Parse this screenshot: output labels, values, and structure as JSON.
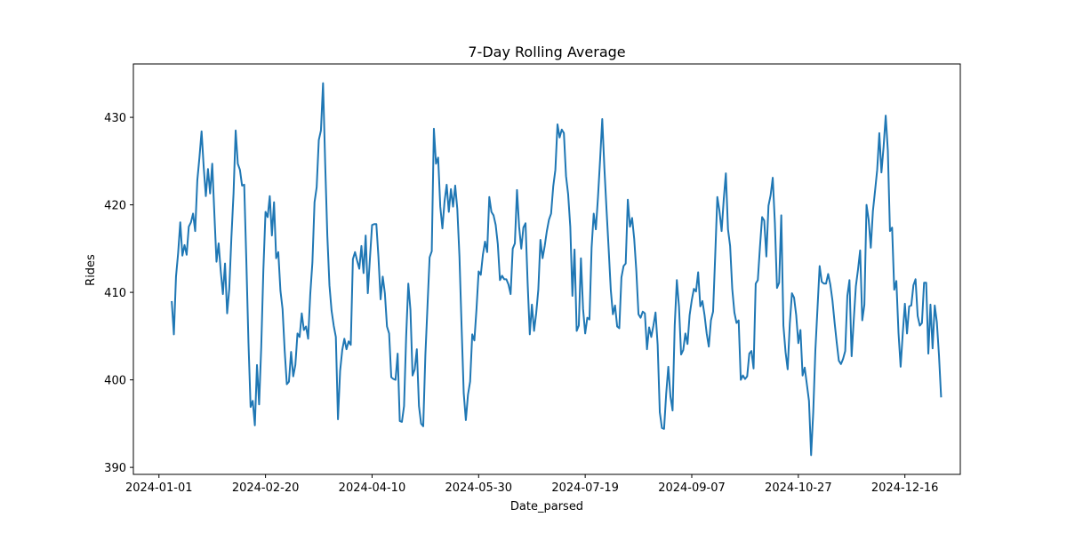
{
  "chart_data": {
    "type": "line",
    "title": "7-Day Rolling Average",
    "xlabel": "Date_parsed",
    "ylabel": "Rides",
    "x_tick_labels": [
      "2024-01-01",
      "2024-02-20",
      "2024-04-10",
      "2024-05-30",
      "2024-07-19",
      "2024-09-07",
      "2024-10-27",
      "2024-12-16"
    ],
    "y_ticks": [
      390,
      400,
      410,
      420,
      430
    ],
    "xlim": [
      "2023-12-20",
      "2025-01-11"
    ],
    "ylim": [
      389.2,
      436.1
    ],
    "grid": false,
    "color": "#1f77b4",
    "series": [
      {
        "x_start": "2024-01-07",
        "x_step_days": 1,
        "values": [
          409,
          405.2,
          411.8,
          414.5,
          418,
          414.2,
          415.4,
          414.3,
          417.5,
          418,
          419,
          417,
          422.8,
          425.4,
          428.4,
          424.3,
          421,
          424.1,
          421.3,
          424.7,
          419,
          413.5,
          415.6,
          412.4,
          409.8,
          413.3,
          407.6,
          410.4,
          416.3,
          421.3,
          428.5,
          424.7,
          424,
          422.2,
          422.3,
          413.6,
          404.3,
          396.9,
          397.6,
          394.8,
          401.7,
          397.2,
          403.8,
          412.6,
          419.2,
          418.6,
          421,
          416.5,
          420.3,
          413.9,
          414.6,
          410.2,
          408.1,
          403.3,
          399.5,
          399.8,
          403.2,
          400.4,
          401.7,
          405.3,
          404.9,
          407.6,
          405.7,
          406.1,
          404.7,
          409.8,
          413.4,
          420.3,
          422,
          427.4,
          428.5,
          433.9,
          424.7,
          416.5,
          410.8,
          407.9,
          406.2,
          404.9,
          395.5,
          401,
          403.4,
          404.7,
          403.5,
          404.4,
          404,
          413.8,
          414.6,
          413.6,
          412.7,
          415.3,
          412.2,
          416.5,
          409.9,
          413.9,
          417.7,
          417.8,
          417.8,
          414,
          409.2,
          411.8,
          409.9,
          406.1,
          405.3,
          400.3,
          400.1,
          400,
          403,
          395.3,
          395.2,
          397,
          405,
          411,
          408,
          400.5,
          401.2,
          403.5,
          397,
          395,
          394.7,
          402.8,
          408.4,
          414,
          414.7,
          428.7,
          424.7,
          425.4,
          419.8,
          417.3,
          420.4,
          422.3,
          419.2,
          421.8,
          419.8,
          422.2,
          419.5,
          414.1,
          406.1,
          398.5,
          395.4,
          398.3,
          399.8,
          405.2,
          404.5,
          408.1,
          412.4,
          412,
          414.3,
          415.8,
          414.6,
          420.9,
          419.2,
          418.8,
          417.7,
          415.5,
          411.4,
          411.9,
          411.5,
          411.5,
          410.9,
          409.8,
          415,
          415.6,
          421.7,
          417.5,
          415,
          417.4,
          417.9,
          411,
          405.2,
          408.6,
          405.6,
          407.6,
          410.3,
          416,
          413.9,
          415.3,
          417,
          418.3,
          419,
          422.1,
          424,
          429.2,
          427.7,
          428.6,
          428.2,
          423.3,
          421.2,
          417.5,
          409.6,
          414.9,
          405.6,
          406.2,
          413.9,
          408.1,
          405.3,
          407.1,
          406.9,
          415.1,
          419,
          417.2,
          420.9,
          425.2,
          429.8,
          424.2,
          419.5,
          415,
          410.3,
          407.5,
          408.5,
          406.1,
          405.9,
          411.7,
          413,
          413.3,
          420.6,
          417.5,
          418.5,
          416.1,
          412.4,
          407.5,
          407.1,
          407.8,
          407.6,
          403.5,
          406,
          404.9,
          406.2,
          407.7,
          404,
          396.3,
          394.5,
          394.4,
          398.4,
          401.5,
          398.1,
          396.5,
          406.2,
          411.4,
          408.4,
          402.9,
          403.4,
          405.3,
          404.1,
          407.4,
          409.1,
          410.4,
          410.1,
          412.3,
          408.4,
          409,
          407.4,
          405.3,
          403.8,
          406.8,
          407.8,
          414.2,
          420.9,
          419.3,
          417,
          420.6,
          423.6,
          417.2,
          415.3,
          410.4,
          407.7,
          406.5,
          406.8,
          400,
          400.5,
          400.1,
          400.4,
          403,
          403.3,
          401.3,
          411,
          411.4,
          415.2,
          418.6,
          418.2,
          414.1,
          419.9,
          421.1,
          423.1,
          417.9,
          410.5,
          411.1,
          418.8,
          406.2,
          403.2,
          401.2,
          406.4,
          409.9,
          409.4,
          407.4,
          404.2,
          405.7,
          400.5,
          401.4,
          399.5,
          397.6,
          391.4,
          396.3,
          403.4,
          408.2,
          413,
          411.2,
          411,
          411,
          412.1,
          410.9,
          409.1,
          406.6,
          404.3,
          402.2,
          401.8,
          402.4,
          403.3,
          409.6,
          411.4,
          402.7,
          406.8,
          410.7,
          412.6,
          414.8,
          406.8,
          408.6,
          420,
          418.3,
          415.1,
          419.3,
          421.6,
          424,
          428.2,
          423.7,
          426.6,
          430.2,
          426.2,
          417,
          417.4,
          410.3,
          411.3,
          405.4,
          401.5,
          405.3,
          408.7,
          405.3,
          408.4,
          408.5,
          410.8,
          411.5,
          407.3,
          406.2,
          406.5,
          411.1,
          411.1,
          403,
          408.6,
          403.6,
          408.5,
          406.6,
          402.8,
          398
        ]
      }
    ]
  }
}
